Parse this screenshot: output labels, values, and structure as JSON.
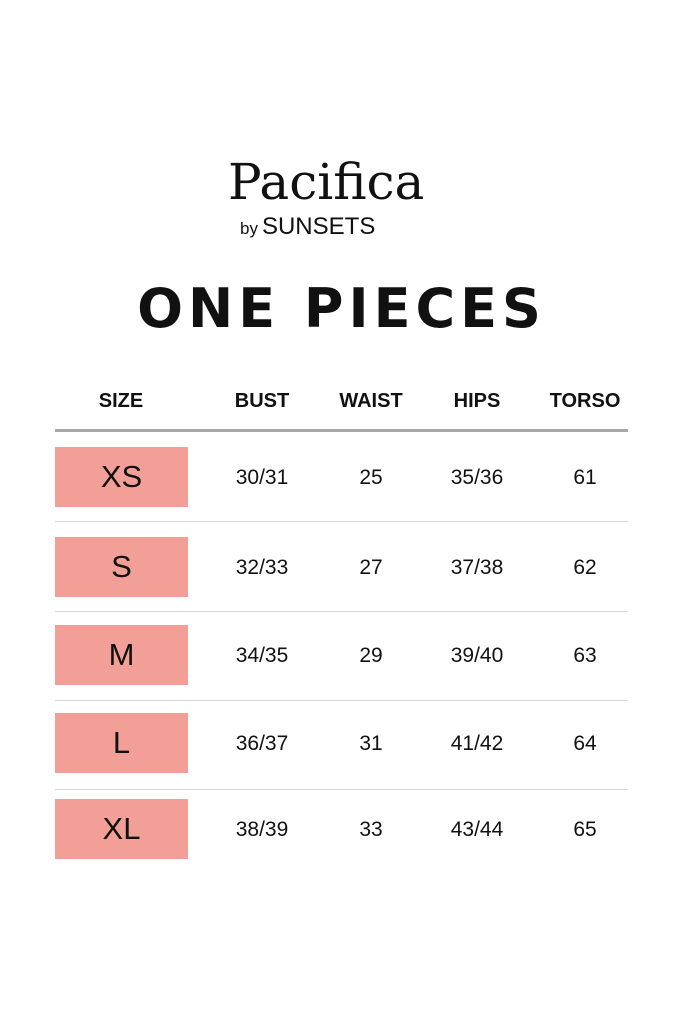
{
  "brand": {
    "name": "Pacifica",
    "by": "by",
    "sub": "SUNSETS"
  },
  "title": "ONE PIECES",
  "headers": [
    "SIZE",
    "BUST",
    "WAIST",
    "HIPS",
    "TORSO"
  ],
  "rows": [
    {
      "size": "XS",
      "bust": "30/31",
      "waist": "25",
      "hips": "35/36",
      "torso": "61"
    },
    {
      "size": "S",
      "bust": "32/33",
      "waist": "27",
      "hips": "37/38",
      "torso": "62"
    },
    {
      "size": "M",
      "bust": "34/35",
      "waist": "29",
      "hips": "39/40",
      "torso": "63"
    },
    {
      "size": "L",
      "bust": "36/37",
      "waist": "31",
      "hips": "41/42",
      "torso": "64"
    },
    {
      "size": "XL",
      "bust": "38/39",
      "waist": "33",
      "hips": "43/44",
      "torso": "65"
    }
  ],
  "colors": {
    "size_highlight": "#f2a097",
    "header_rule": "#a8a8a8",
    "row_rule": "#d6d6d6"
  }
}
